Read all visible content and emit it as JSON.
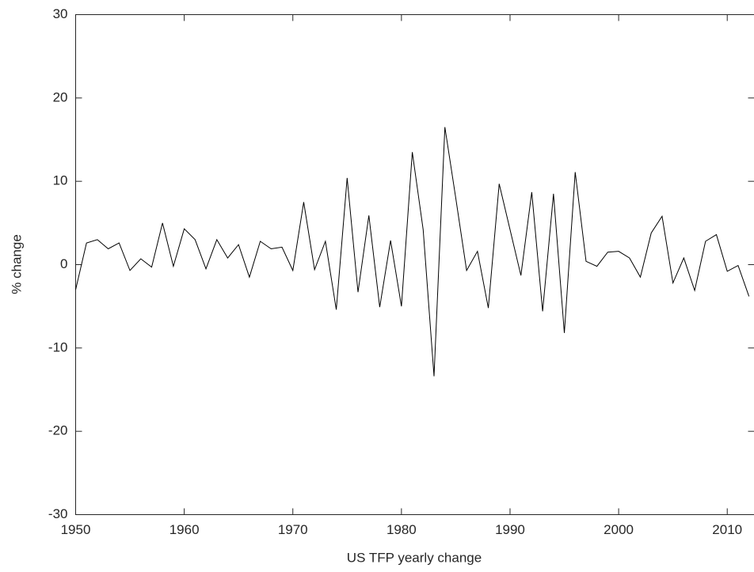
{
  "chart_data": {
    "type": "line",
    "x_label": "US TFP yearly change",
    "y_label": "% change",
    "x": [
      1950,
      1951,
      1952,
      1953,
      1954,
      1955,
      1956,
      1957,
      1958,
      1959,
      1960,
      1961,
      1962,
      1963,
      1964,
      1965,
      1966,
      1967,
      1968,
      1969,
      1970,
      1971,
      1972,
      1973,
      1974,
      1975,
      1976,
      1977,
      1978,
      1979,
      1980,
      1981,
      1982,
      1983,
      1984,
      1985,
      1986,
      1987,
      1988,
      1989,
      1990,
      1991,
      1992,
      1993,
      1994,
      1995,
      1996,
      1997,
      1998,
      1999,
      2000,
      2001,
      2002,
      2003,
      2004,
      2005,
      2006,
      2007,
      2008,
      2009,
      2010,
      2011,
      2012
    ],
    "series": [
      {
        "color": "#000000",
        "values": [
          -3.0,
          2.6,
          3.0,
          1.9,
          2.6,
          -0.7,
          0.7,
          -0.3,
          5.0,
          -0.2,
          4.3,
          3.0,
          -0.5,
          3.0,
          0.8,
          2.4,
          -1.5,
          2.8,
          1.9,
          2.1,
          -0.7,
          7.5,
          -0.6,
          2.8,
          -5.4,
          10.4,
          -3.3,
          5.9,
          -5.1,
          2.9,
          -5.0,
          13.5,
          4.2,
          -13.4,
          16.5,
          8.0,
          -0.7,
          1.6,
          -5.2,
          9.7,
          4.2,
          -1.3,
          8.7,
          -5.6,
          8.5,
          -8.2,
          11.1,
          0.4,
          -0.2,
          1.5,
          1.6,
          0.8,
          -1.5,
          3.8,
          5.8,
          -2.2,
          0.8,
          -3.1,
          2.8,
          3.6,
          -0.8,
          -0.1,
          -3.8
        ]
      }
    ],
    "xlim": [
      1950,
      2012.5
    ],
    "xticks": [
      1950,
      1960,
      1970,
      1980,
      1990,
      2000,
      2010
    ],
    "ylim": [
      -30,
      30
    ],
    "yticks": [
      -30,
      -20,
      -10,
      0,
      10,
      20,
      30
    ],
    "grid": false
  }
}
